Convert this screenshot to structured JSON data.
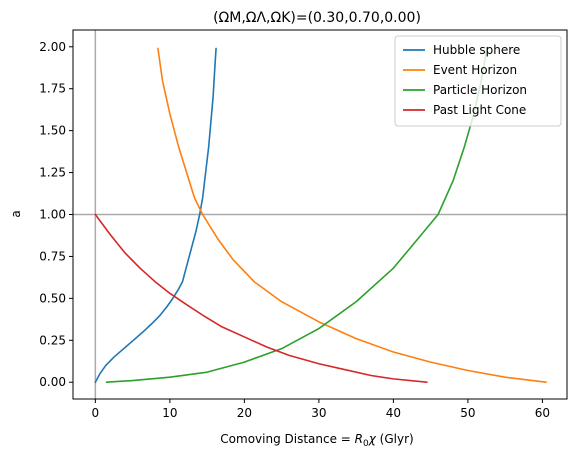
{
  "chart_data": {
    "type": "line",
    "title": "(ΩM,ΩΛ,ΩK)=(0.30,0.70,0.00)",
    "xlabel": "Comoving Distance = ",
    "xlabel_var": "R",
    "xlabel_sub": "0",
    "xlabel_chi": "χ",
    "xlabel_unit": " (Glyr)",
    "ylabel": "a",
    "xlim": [
      -3,
      63.3
    ],
    "ylim": [
      -0.1,
      2.1
    ],
    "xticks": [
      0,
      10,
      20,
      30,
      40,
      50,
      60
    ],
    "xtick_labels": [
      "0",
      "10",
      "20",
      "30",
      "40",
      "50",
      "60"
    ],
    "yticks": [
      0.0,
      0.25,
      0.5,
      0.75,
      1.0,
      1.25,
      1.5,
      1.75,
      2.0
    ],
    "ytick_labels": [
      "0.00",
      "0.25",
      "0.50",
      "0.75",
      "1.00",
      "1.25",
      "1.50",
      "1.75",
      "2.00"
    ],
    "grid": false,
    "legend_position": "top-right",
    "reference_lines": [
      {
        "orientation": "horizontal",
        "value": 1.0,
        "color": "#aaaaaa"
      },
      {
        "orientation": "vertical",
        "value": 0,
        "color": "#aaaaaa"
      }
    ],
    "series": [
      {
        "name": "Hubble sphere",
        "color": "#1f77b4",
        "points": [
          [
            0,
            0
          ],
          [
            0.6,
            0.05
          ],
          [
            1.4,
            0.1
          ],
          [
            2.5,
            0.15
          ],
          [
            3.8,
            0.2
          ],
          [
            5.1,
            0.25
          ],
          [
            6.4,
            0.3
          ],
          [
            7.6,
            0.35
          ],
          [
            8.7,
            0.4
          ],
          [
            9.6,
            0.45
          ],
          [
            10.4,
            0.5
          ],
          [
            11.1,
            0.55
          ],
          [
            11.7,
            0.6
          ],
          [
            12.3,
            0.7
          ],
          [
            12.9,
            0.8
          ],
          [
            13.5,
            0.9
          ],
          [
            14.0,
            1.0
          ],
          [
            14.4,
            1.1
          ],
          [
            14.8,
            1.25
          ],
          [
            15.2,
            1.4
          ],
          [
            15.5,
            1.55
          ],
          [
            15.8,
            1.7
          ],
          [
            16.0,
            1.85
          ],
          [
            16.2,
            1.99
          ]
        ]
      },
      {
        "name": "Event Horizon",
        "color": "#ff7f0e",
        "points": [
          [
            8.4,
            1.99
          ],
          [
            9.0,
            1.8
          ],
          [
            10.0,
            1.6
          ],
          [
            11.2,
            1.4
          ],
          [
            12.6,
            1.2
          ],
          [
            13.3,
            1.1
          ],
          [
            14.4,
            1.0
          ],
          [
            16.5,
            0.85
          ],
          [
            18.5,
            0.73
          ],
          [
            21.3,
            0.6
          ],
          [
            25.0,
            0.48
          ],
          [
            30.0,
            0.36
          ],
          [
            35.0,
            0.26
          ],
          [
            40.0,
            0.18
          ],
          [
            45.0,
            0.12
          ],
          [
            50.0,
            0.07
          ],
          [
            55.0,
            0.03
          ],
          [
            60.5,
            0.0
          ]
        ]
      },
      {
        "name": "Particle Horizon",
        "color": "#2ca02c",
        "points": [
          [
            1.5,
            0.0
          ],
          [
            5.0,
            0.01
          ],
          [
            10.0,
            0.03
          ],
          [
            15.0,
            0.06
          ],
          [
            20.0,
            0.12
          ],
          [
            25.0,
            0.2
          ],
          [
            30.0,
            0.32
          ],
          [
            35.0,
            0.48
          ],
          [
            40.0,
            0.68
          ],
          [
            43.0,
            0.84
          ],
          [
            46.0,
            1.0
          ],
          [
            48.0,
            1.2
          ],
          [
            49.5,
            1.4
          ],
          [
            50.8,
            1.6
          ],
          [
            51.8,
            1.8
          ],
          [
            52.6,
            2.0
          ]
        ]
      },
      {
        "name": "Past Light Cone",
        "color": "#d62728",
        "points": [
          [
            0,
            1.0
          ],
          [
            2.0,
            0.88
          ],
          [
            4.0,
            0.77
          ],
          [
            6.0,
            0.68
          ],
          [
            8.0,
            0.6
          ],
          [
            10.0,
            0.53
          ],
          [
            12.0,
            0.47
          ],
          [
            14.4,
            0.4
          ],
          [
            17.0,
            0.33
          ],
          [
            20.0,
            0.27
          ],
          [
            23.0,
            0.21
          ],
          [
            26.0,
            0.16
          ],
          [
            30.0,
            0.11
          ],
          [
            33.0,
            0.08
          ],
          [
            37.0,
            0.04
          ],
          [
            40.0,
            0.02
          ],
          [
            44.5,
            0.0
          ]
        ]
      }
    ]
  }
}
